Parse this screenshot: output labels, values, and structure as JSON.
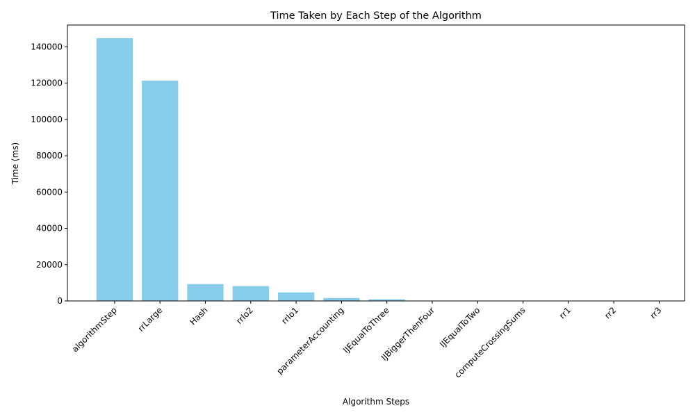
{
  "chart_data": {
    "type": "bar",
    "title": "Time Taken by Each Step of the Algorithm",
    "xlabel": "Algorithm Steps",
    "ylabel": "Time (ms)",
    "categories": [
      "algorithmStep",
      "rrLarge",
      "Hash",
      "rrIo2",
      "rrIo1",
      "parameterAccounting",
      "IJEqualToThree",
      "IJBiggerThenFour",
      "IJEqualToTwo",
      "computeCrossingSums",
      "rr1",
      "rr2",
      "rr3"
    ],
    "values": [
      144800,
      121400,
      9300,
      8200,
      4700,
      1600,
      900,
      150,
      120,
      80,
      60,
      50,
      40
    ],
    "yticks": [
      0,
      20000,
      40000,
      60000,
      80000,
      100000,
      120000,
      140000
    ],
    "ylim": [
      0,
      152040
    ],
    "bar_color": "#87ceeb",
    "grid": false,
    "legend": "none"
  }
}
